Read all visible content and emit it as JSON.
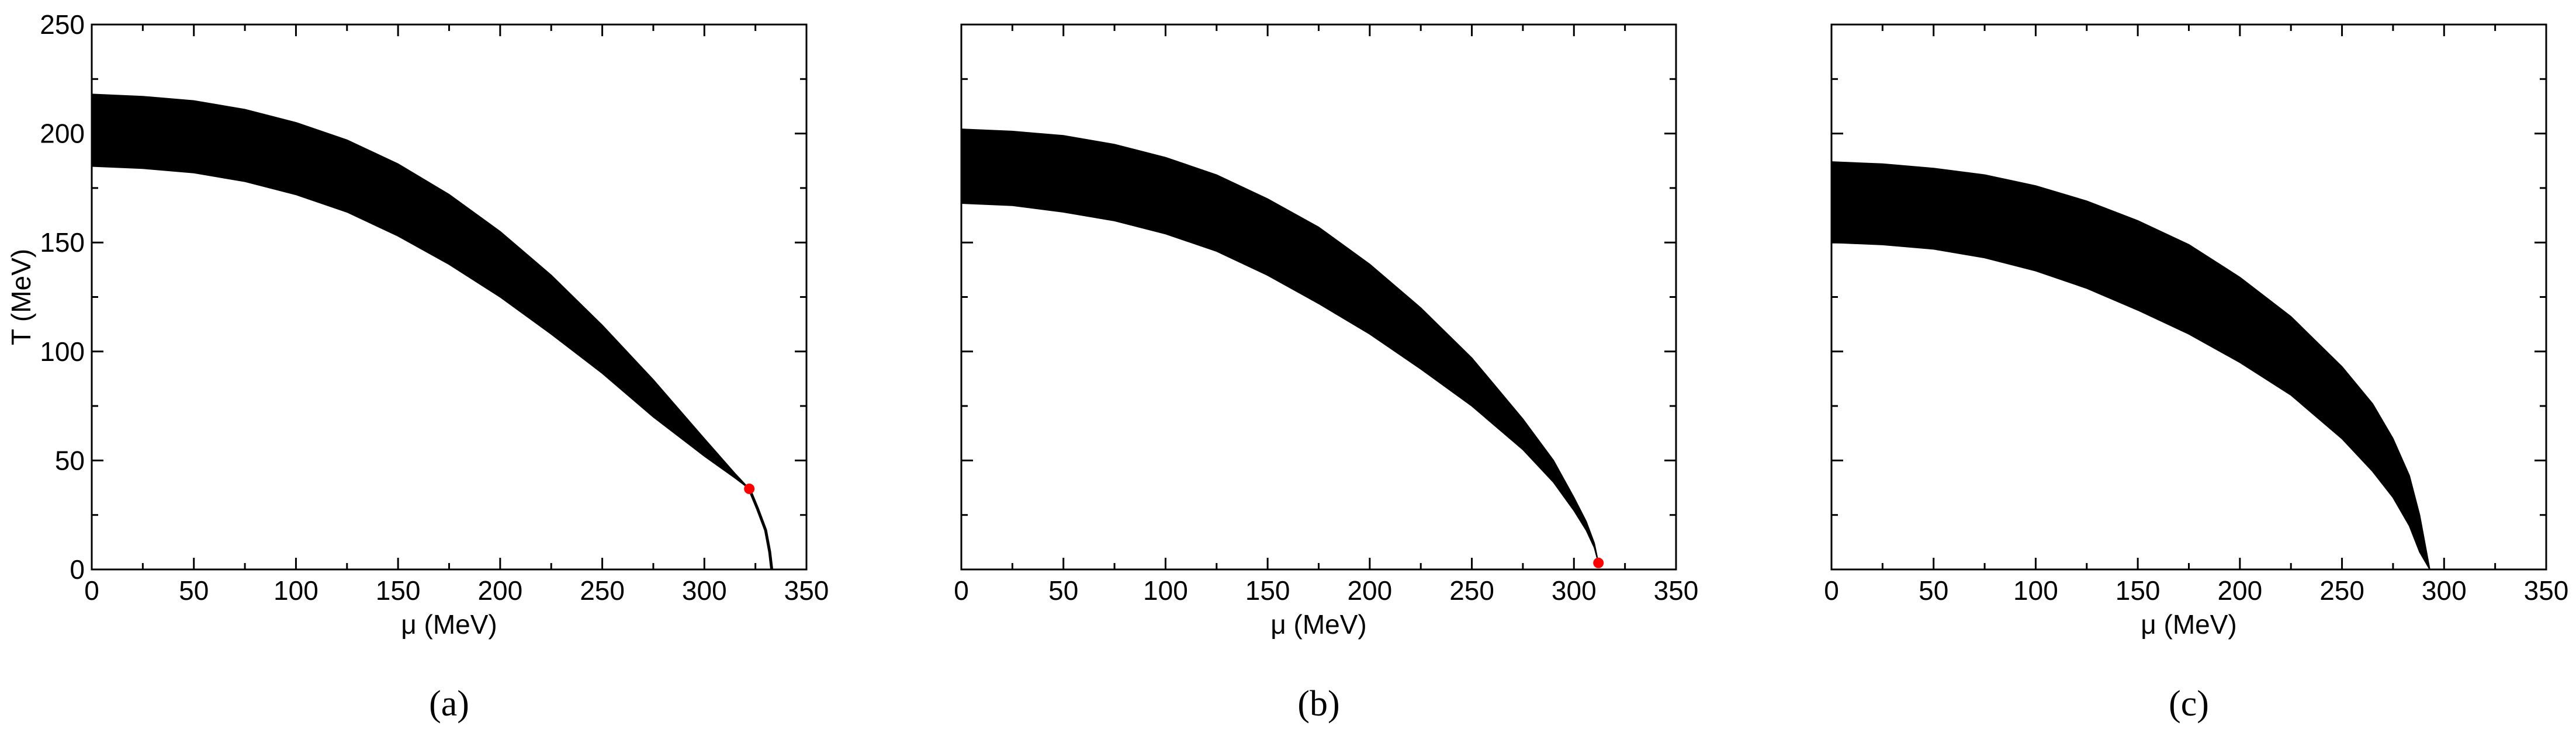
{
  "chart_data": [
    {
      "type": "area",
      "caption": "(a)",
      "xlabel": "μ (MeV)",
      "ylabel": "T (MeV)",
      "xlim": [
        0,
        350
      ],
      "ylim": [
        0,
        250
      ],
      "xticks": [
        0,
        50,
        100,
        150,
        200,
        250,
        300,
        350
      ],
      "yticks": [
        0,
        50,
        100,
        150,
        200,
        250
      ],
      "show_yticklabels": true,
      "fill_color": "#000000",
      "marker_color": "#ff0000",
      "series": [
        {
          "x": [
            0,
            25,
            50,
            75,
            100,
            125,
            150,
            175,
            200,
            225,
            250,
            275,
            300,
            315,
            322
          ],
          "upper": [
            218,
            217,
            215,
            211,
            205,
            197,
            186,
            172,
            155,
            135,
            112,
            87,
            60,
            44,
            37
          ],
          "lower": [
            185,
            184,
            182,
            178,
            172,
            164,
            153,
            140,
            125,
            108,
            90,
            70,
            52,
            42,
            37
          ]
        },
        {
          "x": [
            322,
            326,
            330,
            332,
            333
          ],
          "upper": [
            37,
            28,
            18,
            8,
            0
          ],
          "lower": [
            37,
            28,
            18,
            8,
            0
          ]
        }
      ],
      "marker": {
        "x": 322,
        "y": 37
      }
    },
    {
      "type": "area",
      "caption": "(b)",
      "xlabel": "μ (MeV)",
      "ylabel": "",
      "xlim": [
        0,
        350
      ],
      "ylim": [
        0,
        250
      ],
      "xticks": [
        0,
        50,
        100,
        150,
        200,
        250,
        300,
        350
      ],
      "yticks": [
        0,
        50,
        100,
        150,
        200,
        250
      ],
      "show_yticklabels": false,
      "fill_color": "#000000",
      "marker_color": "#ff0000",
      "series": [
        {
          "x": [
            0,
            25,
            50,
            75,
            100,
            125,
            150,
            175,
            200,
            225,
            250,
            275,
            290,
            300,
            306,
            310,
            312
          ],
          "upper": [
            202,
            201,
            199,
            195,
            189,
            181,
            170,
            157,
            140,
            120,
            97,
            69,
            50,
            33,
            22,
            12,
            3
          ],
          "lower": [
            168,
            167,
            164,
            160,
            154,
            146,
            135,
            122,
            108,
            92,
            75,
            55,
            40,
            27,
            18,
            10,
            3
          ]
        }
      ],
      "marker": {
        "x": 312,
        "y": 3
      }
    },
    {
      "type": "area",
      "caption": "(c)",
      "xlabel": "μ (MeV)",
      "ylabel": "",
      "xlim": [
        0,
        350
      ],
      "ylim": [
        0,
        250
      ],
      "xticks": [
        0,
        50,
        100,
        150,
        200,
        250,
        300,
        350
      ],
      "yticks": [
        0,
        50,
        100,
        150,
        200,
        250
      ],
      "show_yticklabels": false,
      "fill_color": "#000000",
      "marker_color": "#ff0000",
      "series": [
        {
          "x": [
            0,
            25,
            50,
            75,
            100,
            125,
            150,
            175,
            200,
            225,
            250,
            265,
            275,
            283,
            288,
            293
          ],
          "upper": [
            187,
            186,
            184,
            181,
            176,
            169,
            160,
            149,
            134,
            116,
            93,
            76,
            60,
            43,
            25,
            0
          ],
          "lower": [
            150,
            149,
            147,
            143,
            137,
            129,
            119,
            108,
            95,
            80,
            60,
            45,
            33,
            20,
            8,
            0
          ]
        }
      ],
      "marker": null
    }
  ]
}
